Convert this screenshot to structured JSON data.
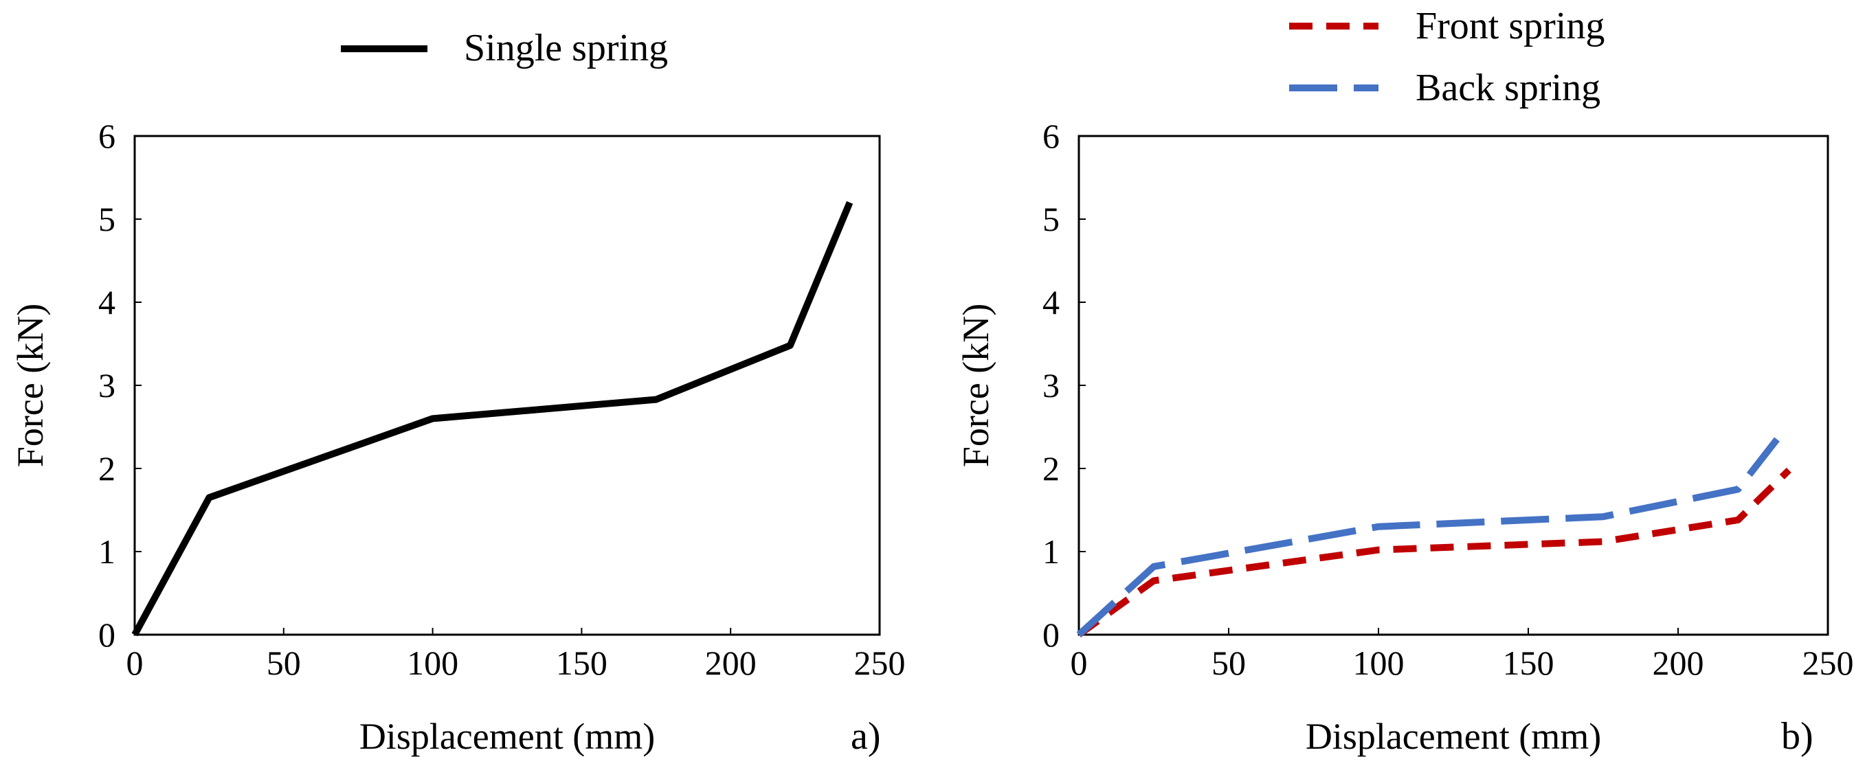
{
  "chart_data": [
    {
      "type": "line",
      "panel_label": "a)",
      "xlabel": "Displacement (mm)",
      "ylabel": "Force (kN)",
      "xlim": [
        0,
        250
      ],
      "ylim": [
        0,
        6
      ],
      "xticks": [
        "0",
        "50",
        "100",
        "150",
        "200",
        "250"
      ],
      "yticks": [
        "0",
        "1",
        "2",
        "3",
        "4",
        "5",
        "6"
      ],
      "grid": false,
      "legend_position": "top",
      "series": [
        {
          "name": "Single spring",
          "color": "#000000",
          "dash": "solid",
          "x": [
            0,
            25,
            100,
            175,
            220,
            240
          ],
          "y": [
            0,
            1.65,
            2.6,
            2.83,
            3.48,
            5.2
          ]
        }
      ]
    },
    {
      "type": "line",
      "panel_label": "b)",
      "xlabel": "Displacement (mm)",
      "ylabel": "Force (kN)",
      "xlim": [
        0,
        250
      ],
      "ylim": [
        0,
        6
      ],
      "xticks": [
        "0",
        "50",
        "100",
        "150",
        "200",
        "250"
      ],
      "yticks": [
        "0",
        "1",
        "2",
        "3",
        "4",
        "5",
        "6"
      ],
      "grid": false,
      "legend_position": "top",
      "series": [
        {
          "name": "Front spring",
          "color": "#c00000",
          "dash": "short-dash",
          "x": [
            0,
            25,
            100,
            175,
            220,
            237
          ],
          "y": [
            0,
            0.65,
            1.02,
            1.12,
            1.38,
            1.98
          ]
        },
        {
          "name": "Back spring",
          "color": "#4472c4",
          "dash": "long-dash",
          "x": [
            0,
            25,
            100,
            175,
            220,
            233
          ],
          "y": [
            0,
            0.82,
            1.3,
            1.42,
            1.75,
            2.35
          ]
        }
      ]
    }
  ]
}
